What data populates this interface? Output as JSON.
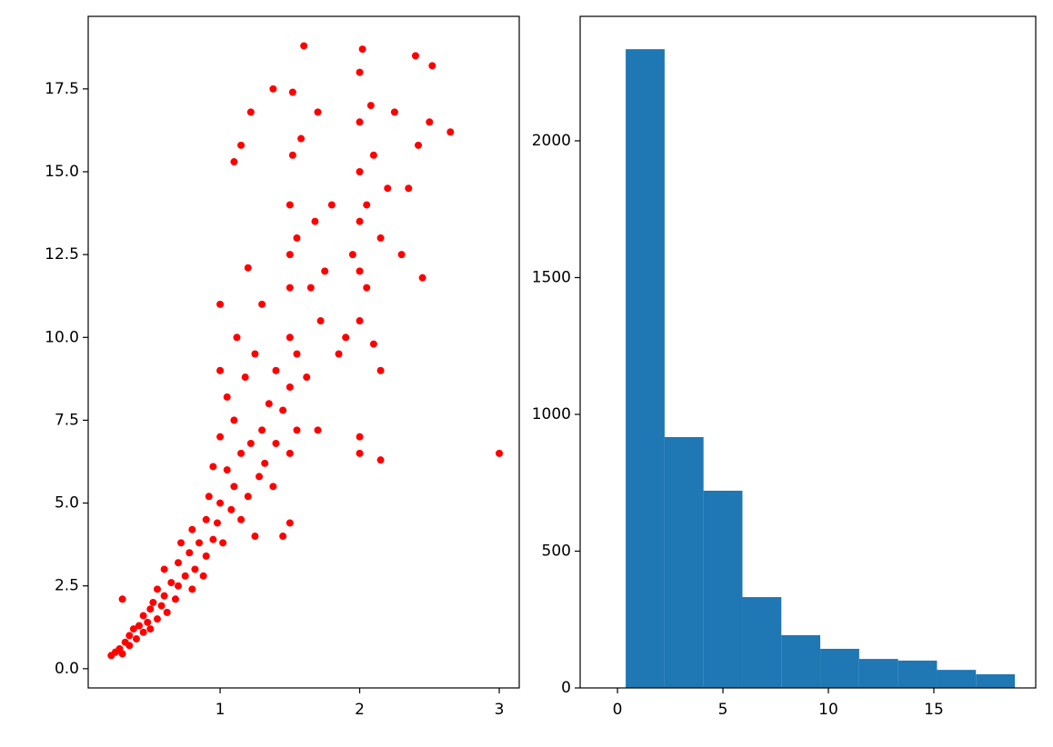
{
  "chart_data": [
    {
      "type": "scatter",
      "color": "#ff0000",
      "x": [
        0.22,
        0.25,
        0.28,
        0.3,
        0.32,
        0.35,
        0.35,
        0.38,
        0.4,
        0.42,
        0.45,
        0.45,
        0.48,
        0.5,
        0.5,
        0.52,
        0.55,
        0.55,
        0.58,
        0.6,
        0.6,
        0.62,
        0.65,
        0.68,
        0.7,
        0.7,
        0.72,
        0.75,
        0.78,
        0.8,
        0.8,
        0.82,
        0.85,
        0.88,
        0.9,
        0.9,
        0.92,
        0.95,
        0.95,
        0.98,
        1.0,
        1.0,
        1.0,
        1.0,
        1.02,
        1.05,
        1.05,
        1.08,
        1.1,
        1.1,
        1.12,
        1.15,
        1.15,
        1.18,
        1.2,
        1.2,
        1.22,
        1.25,
        1.25,
        1.28,
        1.3,
        1.3,
        1.32,
        1.35,
        1.38,
        1.4,
        1.4,
        1.45,
        1.45,
        1.5,
        1.5,
        1.5,
        1.5,
        1.5,
        1.5,
        1.5,
        1.52,
        1.52,
        1.55,
        1.55,
        1.55,
        1.58,
        1.6,
        1.62,
        1.65,
        1.68,
        1.7,
        1.7,
        1.72,
        1.75,
        1.8,
        1.85,
        1.9,
        1.95,
        2.0,
        2.0,
        2.0,
        2.0,
        2.0,
        2.0,
        2.0,
        2.0,
        2.02,
        2.05,
        2.05,
        2.08,
        2.1,
        2.1,
        2.15,
        2.15,
        2.15,
        2.2,
        2.25,
        2.3,
        2.35,
        2.4,
        2.42,
        2.45,
        2.5,
        2.52,
        2.65,
        3.0,
        0.3,
        1.22,
        1.15,
        1.1,
        1.38
      ],
      "y": [
        0.4,
        0.5,
        0.6,
        0.45,
        0.8,
        0.7,
        1.0,
        1.2,
        0.9,
        1.3,
        1.1,
        1.6,
        1.4,
        1.8,
        1.2,
        2.0,
        1.5,
        2.4,
        1.9,
        2.2,
        3.0,
        1.7,
        2.6,
        2.1,
        3.2,
        2.5,
        3.8,
        2.8,
        3.5,
        2.4,
        4.2,
        3.0,
        3.8,
        2.8,
        4.5,
        3.4,
        5.2,
        3.9,
        6.1,
        4.4,
        5.0,
        7.0,
        9.0,
        11.0,
        3.8,
        6.0,
        8.2,
        4.8,
        5.5,
        7.5,
        10.0,
        4.5,
        6.5,
        8.8,
        5.2,
        12.1,
        6.8,
        4.0,
        9.5,
        5.8,
        7.2,
        11.0,
        6.2,
        8.0,
        5.5,
        9.0,
        6.8,
        4.0,
        7.8,
        4.4,
        6.5,
        8.5,
        10.0,
        11.5,
        12.5,
        14.0,
        15.5,
        17.4,
        7.2,
        9.5,
        13.0,
        16.0,
        18.8,
        8.8,
        11.5,
        13.5,
        7.2,
        16.8,
        10.5,
        12.0,
        14.0,
        9.5,
        10.0,
        12.5,
        6.5,
        7.0,
        10.5,
        12.0,
        13.5,
        15.0,
        16.5,
        18.0,
        18.7,
        11.5,
        14.0,
        17.0,
        9.8,
        15.5,
        6.3,
        9.0,
        13.0,
        14.5,
        16.8,
        12.5,
        14.5,
        18.5,
        15.8,
        11.8,
        16.5,
        18.2,
        16.2,
        6.5,
        2.1,
        16.8,
        15.8,
        15.3,
        17.5
      ],
      "xlim": [
        0.055,
        3.143
      ],
      "ylim": [
        -0.58,
        19.69
      ],
      "xticks": [
        1,
        2,
        3
      ],
      "yticks": [
        {
          "value": 0,
          "label": "0.0"
        },
        2.5,
        {
          "value": 5,
          "label": "5.0"
        },
        7.5,
        {
          "value": 10,
          "label": "10.0"
        },
        12.5,
        {
          "value": 15,
          "label": "15.0"
        },
        17.5
      ]
    },
    {
      "type": "histogram",
      "color": "#1f77b4",
      "bins": [
        0.39,
        2.235,
        4.08,
        5.925,
        7.77,
        9.615,
        11.46,
        13.305,
        15.15,
        16.995,
        18.84
      ],
      "counts": [
        2335,
        917,
        721,
        332,
        193,
        143,
        106,
        100,
        66,
        50
      ],
      "xlim": [
        -1.77,
        19.83
      ],
      "ylim": [
        0,
        2455
      ],
      "xticks": [
        0,
        5,
        10,
        15
      ],
      "yticks": [
        0,
        500,
        1000,
        1500,
        2000
      ]
    }
  ]
}
